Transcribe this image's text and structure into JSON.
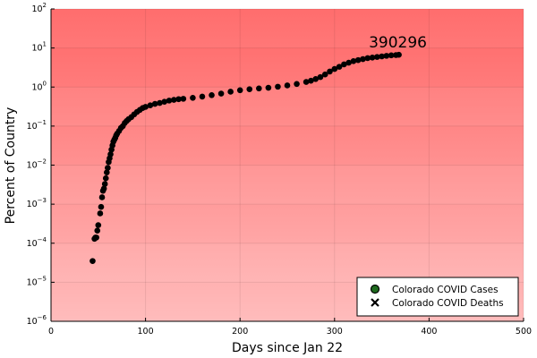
{
  "chart_data": {
    "type": "scatter",
    "title": "",
    "xlabel": "Days since Jan 22",
    "ylabel": "Percent of Country",
    "xlim": [
      0,
      500
    ],
    "ylim": [
      1e-06,
      100
    ],
    "yscale": "log",
    "grid": true,
    "legend_position": "bottom-right",
    "x_ticks": [
      "0",
      "100",
      "200",
      "300",
      "400",
      "500"
    ],
    "y_tick_exponents": [
      -6,
      -5,
      -4,
      -3,
      -2,
      -1,
      0,
      1,
      2
    ],
    "background_gradient": {
      "top": "#ff6666",
      "bottom": "#ffbcbc"
    },
    "annotation": {
      "text": "390296",
      "x": 367,
      "y": 6.7
    },
    "series": [
      {
        "name": "Colorado COVID Cases",
        "marker": "circle",
        "color": "#000000",
        "legend_color": "#1f6b1f",
        "x": [
          44,
          46,
          47,
          48,
          49,
          50,
          52,
          53,
          54,
          55,
          56,
          57,
          58,
          59,
          60,
          61,
          62,
          63,
          64,
          65,
          66,
          67,
          68,
          69,
          70,
          72,
          74,
          76,
          78,
          80,
          82,
          85,
          88,
          91,
          94,
          97,
          100,
          105,
          110,
          115,
          120,
          125,
          130,
          135,
          140,
          150,
          160,
          170,
          180,
          190,
          200,
          210,
          220,
          230,
          240,
          250,
          260,
          270,
          275,
          280,
          285,
          290,
          295,
          300,
          305,
          310,
          315,
          320,
          325,
          330,
          335,
          340,
          345,
          350,
          355,
          360,
          365,
          368
        ],
        "y": [
          3.5e-05,
          0.00013,
          0.00014,
          0.00014,
          0.00021,
          0.00029,
          0.00058,
          0.00085,
          0.0015,
          0.0022,
          0.0025,
          0.0033,
          0.0046,
          0.0065,
          0.0085,
          0.012,
          0.015,
          0.019,
          0.025,
          0.032,
          0.04,
          0.045,
          0.05,
          0.058,
          0.064,
          0.075,
          0.09,
          0.1,
          0.12,
          0.135,
          0.15,
          0.17,
          0.2,
          0.23,
          0.26,
          0.29,
          0.31,
          0.34,
          0.37,
          0.39,
          0.42,
          0.45,
          0.47,
          0.49,
          0.5,
          0.53,
          0.57,
          0.62,
          0.68,
          0.76,
          0.83,
          0.88,
          0.92,
          0.96,
          1.02,
          1.1,
          1.2,
          1.35,
          1.45,
          1.6,
          1.8,
          2.1,
          2.5,
          2.9,
          3.3,
          3.8,
          4.2,
          4.6,
          4.9,
          5.2,
          5.5,
          5.7,
          5.9,
          6.1,
          6.3,
          6.5,
          6.6,
          6.7
        ]
      },
      {
        "name": "Colorado COVID Deaths",
        "marker": "x",
        "color": "#000000",
        "x": [],
        "y": []
      }
    ]
  }
}
